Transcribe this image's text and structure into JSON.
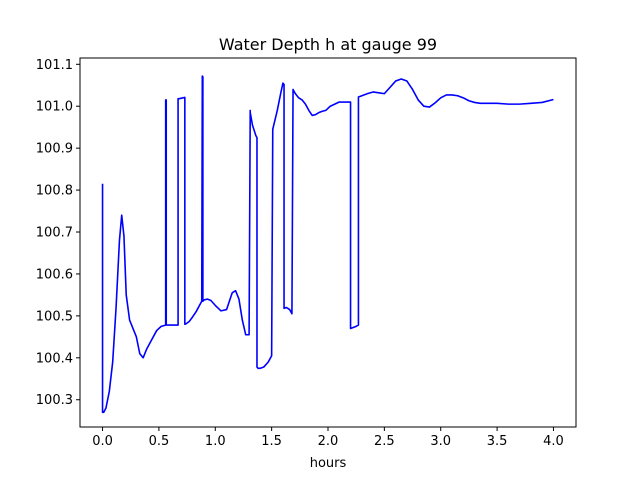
{
  "chart_data": {
    "type": "line",
    "title": "Water Depth h at gauge 99",
    "xlabel": "hours",
    "ylabel": "",
    "xlim": [
      -0.2,
      4.2
    ],
    "ylim": [
      100.235,
      101.115
    ],
    "xticks": [
      {
        "v": 0.0,
        "label": "0.0"
      },
      {
        "v": 0.5,
        "label": "0.5"
      },
      {
        "v": 1.0,
        "label": "1.0"
      },
      {
        "v": 1.5,
        "label": "1.5"
      },
      {
        "v": 2.0,
        "label": "2.0"
      },
      {
        "v": 2.5,
        "label": "2.5"
      },
      {
        "v": 3.0,
        "label": "3.0"
      },
      {
        "v": 3.5,
        "label": "3.5"
      },
      {
        "v": 4.0,
        "label": "4.0"
      }
    ],
    "yticks": [
      {
        "v": 100.3,
        "label": "100.3"
      },
      {
        "v": 100.4,
        "label": "100.4"
      },
      {
        "v": 100.5,
        "label": "100.5"
      },
      {
        "v": 100.6,
        "label": "100.6"
      },
      {
        "v": 100.7,
        "label": "100.7"
      },
      {
        "v": 100.8,
        "label": "100.8"
      },
      {
        "v": 100.9,
        "label": "100.9"
      },
      {
        "v": 101.0,
        "label": "101.0"
      },
      {
        "v": 101.1,
        "label": "101.1"
      }
    ],
    "grid": false,
    "legend": "none",
    "series": [
      {
        "color": "#0000ff",
        "x": [
          0.0,
          0.0,
          0.01,
          0.03,
          0.06,
          0.09,
          0.12,
          0.15,
          0.17,
          0.19,
          0.21,
          0.24,
          0.27,
          0.3,
          0.33,
          0.36,
          0.39,
          0.43,
          0.48,
          0.52,
          0.56,
          0.56,
          0.565,
          0.565,
          0.57,
          0.67,
          0.67,
          0.68,
          0.73,
          0.73,
          0.74,
          0.77,
          0.8,
          0.83,
          0.86,
          0.88,
          0.885,
          0.89,
          0.89,
          0.9,
          0.93,
          0.96,
          1.0,
          1.05,
          1.1,
          1.15,
          1.18,
          1.21,
          1.24,
          1.27,
          1.3,
          1.31,
          1.31,
          1.33,
          1.36,
          1.37,
          1.37,
          1.38,
          1.4,
          1.43,
          1.47,
          1.5,
          1.51,
          1.51,
          1.55,
          1.58,
          1.6,
          1.61,
          1.61,
          1.63,
          1.66,
          1.68,
          1.69,
          1.69,
          1.71,
          1.74,
          1.77,
          1.8,
          1.83,
          1.86,
          1.89,
          1.92,
          1.95,
          1.98,
          2.02,
          2.06,
          2.1,
          2.15,
          2.2,
          2.2,
          2.25,
          2.27,
          2.27,
          2.3,
          2.35,
          2.4,
          2.45,
          2.5,
          2.55,
          2.6,
          2.65,
          2.7,
          2.75,
          2.8,
          2.85,
          2.9,
          2.95,
          3.0,
          3.05,
          3.1,
          3.15,
          3.2,
          3.25,
          3.3,
          3.35,
          3.4,
          3.5,
          3.6,
          3.7,
          3.8,
          3.9,
          4.0
        ],
        "y": [
          100.815,
          100.27,
          100.27,
          100.28,
          100.32,
          100.39,
          100.52,
          100.68,
          100.74,
          100.69,
          100.55,
          100.49,
          100.47,
          100.45,
          100.41,
          100.4,
          100.42,
          100.44,
          100.465,
          100.475,
          100.478,
          101.015,
          101.015,
          100.478,
          100.478,
          100.478,
          101.018,
          101.018,
          101.021,
          100.48,
          100.481,
          100.487,
          100.498,
          100.51,
          100.525,
          100.535,
          101.072,
          101.07,
          100.535,
          100.538,
          100.54,
          100.537,
          100.525,
          100.512,
          100.515,
          100.555,
          100.56,
          100.54,
          100.49,
          100.455,
          100.455,
          100.99,
          100.985,
          100.955,
          100.93,
          100.925,
          100.378,
          100.375,
          100.375,
          100.378,
          100.39,
          100.405,
          100.945,
          100.945,
          100.99,
          101.03,
          101.055,
          101.052,
          100.518,
          100.52,
          100.515,
          100.505,
          101.04,
          101.04,
          101.03,
          101.02,
          101.015,
          101.005,
          100.99,
          100.978,
          100.98,
          100.985,
          100.988,
          100.99,
          101.0,
          101.005,
          101.01,
          101.01,
          101.01,
          100.47,
          100.475,
          100.478,
          101.022,
          101.025,
          101.03,
          101.034,
          101.032,
          101.03,
          101.045,
          101.06,
          101.065,
          101.06,
          101.04,
          101.015,
          101.0,
          100.998,
          101.008,
          101.02,
          101.027,
          101.027,
          101.025,
          101.02,
          101.013,
          101.009,
          101.007,
          101.007,
          101.007,
          101.005,
          101.005,
          101.007,
          101.009,
          101.016
        ]
      }
    ]
  }
}
